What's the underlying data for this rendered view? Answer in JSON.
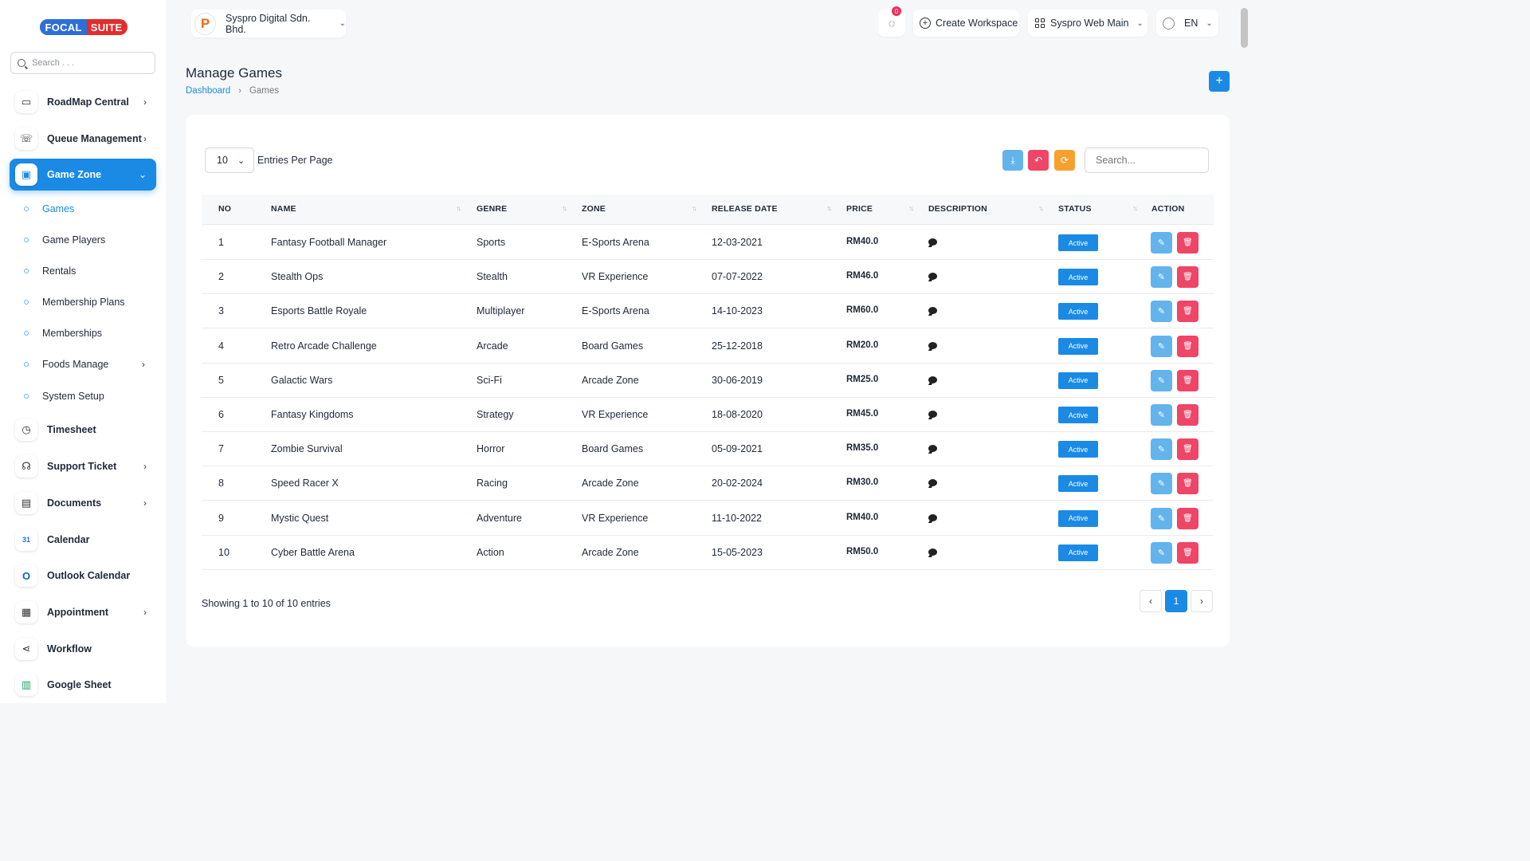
{
  "brand": {
    "part1": "FOCAL",
    "part2": "SUITE"
  },
  "sidebar": {
    "search_placeholder": "Search . . .",
    "items": [
      {
        "label": "RoadMap Central",
        "icon": "map-icon",
        "glyph": "▭",
        "chevron": true
      },
      {
        "label": "Queue Management",
        "icon": "phone-icon",
        "glyph": "☏",
        "chevron": true
      },
      {
        "label": "Game Zone",
        "icon": "gamepad-icon",
        "glyph": "▣",
        "chevron": true,
        "active": true
      }
    ],
    "sub_items": [
      {
        "label": "Games",
        "active": true
      },
      {
        "label": "Game Players"
      },
      {
        "label": "Rentals"
      },
      {
        "label": "Membership Plans"
      },
      {
        "label": "Memberships"
      },
      {
        "label": "Foods Manage",
        "chevron": true
      },
      {
        "label": "System Setup"
      }
    ],
    "lower_items": [
      {
        "label": "Timesheet",
        "icon": "clock-icon",
        "glyph": "◷"
      },
      {
        "label": "Support Ticket",
        "icon": "headset-icon",
        "glyph": "☊",
        "chevron": true
      },
      {
        "label": "Documents",
        "icon": "document-icon",
        "glyph": "▤",
        "chevron": true
      },
      {
        "label": "Calendar",
        "icon": "calendar-icon",
        "glyph": "31"
      },
      {
        "label": "Outlook Calendar",
        "icon": "outlook-icon",
        "glyph": "O"
      },
      {
        "label": "Appointment",
        "icon": "appointment-icon",
        "glyph": "▦",
        "chevron": true
      },
      {
        "label": "Workflow",
        "icon": "workflow-icon",
        "glyph": "⋖"
      },
      {
        "label": "Google Sheet",
        "icon": "google-sheet-icon",
        "glyph": "▥"
      }
    ]
  },
  "header": {
    "company": "Syspro Digital Sdn. Bhd.",
    "company_logo": "P",
    "notification_count": "0",
    "create_workspace": "Create Workspace",
    "workspace": "Syspro Web Main",
    "language": "EN"
  },
  "page": {
    "title": "Manage Games",
    "breadcrumb_home": "Dashboard",
    "breadcrumb_current": "Games",
    "add_button": "+"
  },
  "table": {
    "entries_value": "10",
    "entries_label": "Entries Per Page",
    "search_placeholder": "Search...",
    "headers": {
      "no": "NO",
      "name": "NAME",
      "genre": "GENRE",
      "zone": "ZONE",
      "release": "RELEASE DATE",
      "price": "PRICE",
      "description": "DESCRIPTION",
      "status": "STATUS",
      "action": "ACTION"
    },
    "rows": [
      {
        "no": "1",
        "name": "Fantasy Football Manager",
        "genre": "Sports",
        "zone": "E-Sports Arena",
        "release": "12-03-2021",
        "price": "RM40.0",
        "status": "Active"
      },
      {
        "no": "2",
        "name": "Stealth Ops",
        "genre": "Stealth",
        "zone": "VR Experience",
        "release": "07-07-2022",
        "price": "RM46.0",
        "status": "Active"
      },
      {
        "no": "3",
        "name": "Esports Battle Royale",
        "genre": "Multiplayer",
        "zone": "E-Sports Arena",
        "release": "14-10-2023",
        "price": "RM60.0",
        "status": "Active"
      },
      {
        "no": "4",
        "name": "Retro Arcade Challenge",
        "genre": "Arcade",
        "zone": "Board Games",
        "release": "25-12-2018",
        "price": "RM20.0",
        "status": "Active"
      },
      {
        "no": "5",
        "name": "Galactic Wars",
        "genre": "Sci-Fi",
        "zone": "Arcade Zone",
        "release": "30-06-2019",
        "price": "RM25.0",
        "status": "Active"
      },
      {
        "no": "6",
        "name": "Fantasy Kingdoms",
        "genre": "Strategy",
        "zone": "VR Experience",
        "release": "18-08-2020",
        "price": "RM45.0",
        "status": "Active"
      },
      {
        "no": "7",
        "name": "Zombie Survival",
        "genre": "Horror",
        "zone": "Board Games",
        "release": "05-09-2021",
        "price": "RM35.0",
        "status": "Active"
      },
      {
        "no": "8",
        "name": "Speed Racer X",
        "genre": "Racing",
        "zone": "Arcade Zone",
        "release": "20-02-2024",
        "price": "RM30.0",
        "status": "Active"
      },
      {
        "no": "9",
        "name": "Mystic Quest",
        "genre": "Adventure",
        "zone": "VR Experience",
        "release": "11-10-2022",
        "price": "RM40.0",
        "status": "Active"
      },
      {
        "no": "10",
        "name": "Cyber Battle Arena",
        "genre": "Action",
        "zone": "Arcade Zone",
        "release": "15-05-2023",
        "price": "RM50.0",
        "status": "Active"
      }
    ],
    "footer": "Showing 1 to 10 of 10 entries",
    "pagination": {
      "prev": "‹",
      "current": "1",
      "next": "›"
    }
  },
  "colors": {
    "primary": "#1a8ae5",
    "danger": "#ef4567",
    "warning": "#f6a12e",
    "info": "#63b3ed"
  }
}
